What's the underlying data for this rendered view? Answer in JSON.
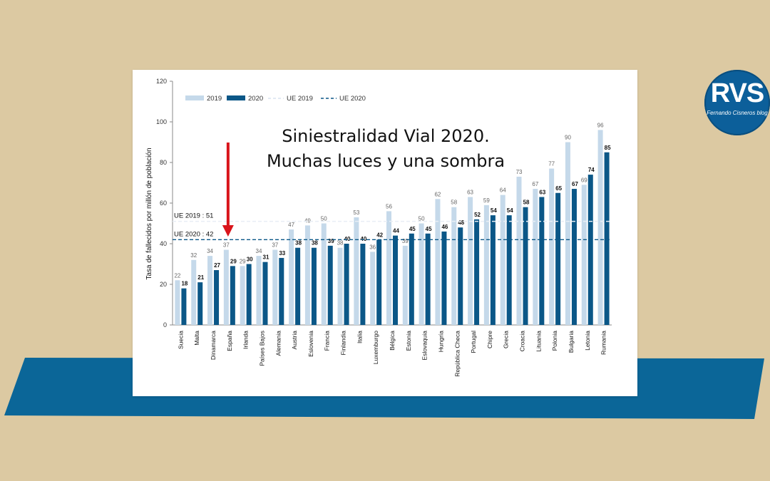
{
  "logo": {
    "text": "RVS",
    "subtitle": "Fernando Cisneros blog"
  },
  "headline": {
    "line1": "Siniestralidad Vial 2020.",
    "line2": "Muchas luces y una sombra"
  },
  "colors": {
    "background": "#dcc9a2",
    "stripe": "#0b6698",
    "series_2019": "#c5d9ea",
    "series_2020": "#0b5787",
    "ref_2019": "#d8e4ef",
    "ref_2020": "#0b5787",
    "arrow": "#d9141b"
  },
  "chart_data": {
    "type": "bar",
    "ylabel": "Tasa de fallecidos por millón de población",
    "ylim": [
      0,
      120
    ],
    "yticks": [
      0,
      20,
      40,
      60,
      80,
      100,
      120
    ],
    "grid": false,
    "legend_position": "top-left",
    "legend": [
      "2019",
      "2020",
      "UE 2019",
      "UE 2020"
    ],
    "categories": [
      "Suecia",
      "Malta",
      "Dinamarca",
      "España",
      "Irlanda",
      "Países Bajos",
      "Alemania",
      "Austria",
      "Eslovenia",
      "Francia",
      "Finlandia",
      "Italia",
      "Luxemburgo",
      "Bélgica",
      "Estonia",
      "Eslovaquia",
      "Hungría",
      "República Checa",
      "Portugal",
      "Chipre",
      "Grecia",
      "Croacia",
      "Lituania",
      "Polonia",
      "Bulgaria",
      "Letonia",
      "Rumania"
    ],
    "series": [
      {
        "name": "2019",
        "values": [
          22,
          32,
          34,
          37,
          29,
          34,
          37,
          47,
          49,
          50,
          38,
          53,
          36,
          56,
          39,
          50,
          62,
          58,
          63,
          59,
          64,
          73,
          67,
          77,
          90,
          69,
          96
        ]
      },
      {
        "name": "2020",
        "values": [
          18,
          21,
          27,
          29,
          30,
          31,
          33,
          38,
          38,
          39,
          40,
          40,
          42,
          44,
          45,
          45,
          46,
          48,
          52,
          54,
          54,
          58,
          63,
          65,
          67,
          74,
          85
        ]
      }
    ],
    "reference_lines": [
      {
        "name": "UE 2019",
        "label": "UE 2019 : 51",
        "value": 51
      },
      {
        "name": "UE 2020",
        "label": "UE 2020 : 42",
        "value": 42
      }
    ],
    "highlight_arrow_category": "España"
  }
}
